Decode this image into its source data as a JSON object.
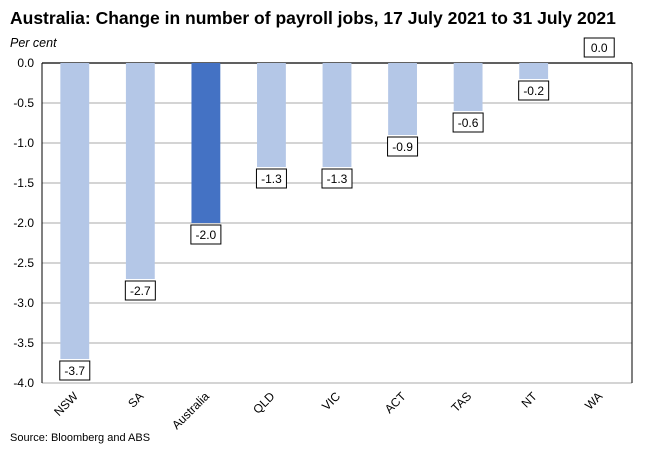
{
  "chart_data": {
    "type": "bar",
    "title": "Australia: Change in number of payroll jobs, 17 July 2021 to 31 July 2021",
    "ylabel": "Per cent",
    "xlabel": "",
    "categories": [
      "NSW",
      "SA",
      "Australia",
      "QLD",
      "VIC",
      "ACT",
      "TAS",
      "NT",
      "WA"
    ],
    "values": [
      -3.7,
      -2.7,
      -2.0,
      -1.3,
      -1.3,
      -0.9,
      -0.6,
      -0.2,
      0.0
    ],
    "data_labels": [
      "-3.7",
      "-2.7",
      "-2.0",
      "-1.3",
      "-1.3",
      "-0.9",
      "-0.6",
      "-0.2",
      "0.0"
    ],
    "ylim": [
      -4.0,
      0.0
    ],
    "yticks": [
      0.0,
      -0.5,
      -1.0,
      -1.5,
      -2.0,
      -2.5,
      -3.0,
      -3.5,
      -4.0
    ],
    "ytick_labels": [
      "0.0",
      "-0.5",
      "-1.0",
      "-1.5",
      "-2.0",
      "-2.5",
      "-3.0",
      "-3.5",
      "-4.0"
    ],
    "grid": true,
    "highlight_category": "Australia",
    "colors": {
      "bar": "#b4c7e7",
      "highlight": "#4472c4",
      "grid": "#8c8c8c"
    },
    "source": "Source: Bloomberg and ABS"
  }
}
